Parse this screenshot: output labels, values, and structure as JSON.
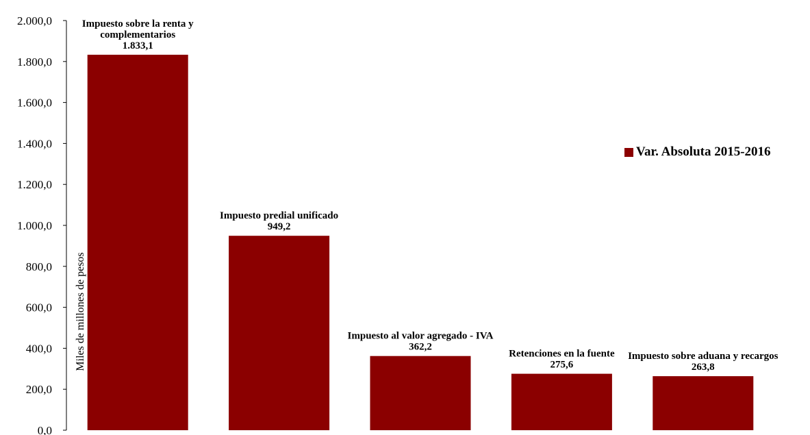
{
  "colors": {
    "bar": "#8B0000",
    "axis": "#000000",
    "text": "#000000"
  },
  "chart_data": {
    "type": "bar",
    "title": "",
    "xlabel": "",
    "ylabel": "Miles de millones de pesos",
    "ylim": [
      0,
      2000
    ],
    "y_ticks": [
      "0,0",
      "200,0",
      "400,0",
      "600,0",
      "800,0",
      "1.000,0",
      "1.200,0",
      "1.400,0",
      "1.600,0",
      "1.800,0",
      "2.000,0"
    ],
    "categories": [
      "Impuesto sobre la renta y complementarios",
      "Impuesto predial unificado",
      "Impuesto al valor agregado - IVA",
      "Retenciones en la fuente",
      "Impuesto sobre aduana y recargos"
    ],
    "series": [
      {
        "name": "Var. Absoluta 2015-2016",
        "values": [
          1833.1,
          949.2,
          362.2,
          275.6,
          263.8
        ],
        "labels": [
          "1.833,1",
          "949,2",
          "362,2",
          "275,6",
          "263,8"
        ]
      }
    ],
    "grid": false,
    "legend": "right"
  }
}
